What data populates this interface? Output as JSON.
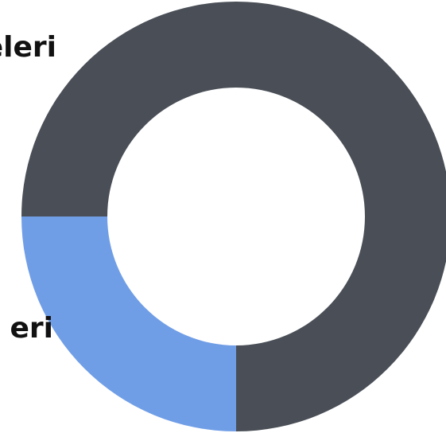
{
  "chart_data": {
    "type": "pie",
    "donut": true,
    "start_angle_deg": 180,
    "direction": "clockwise",
    "slices": [
      {
        "label": "eleri",
        "value": 75,
        "color": "#4a4f57"
      },
      {
        "label": "eri",
        "value": 25,
        "color": "#709ee6"
      }
    ],
    "legend": "none"
  }
}
